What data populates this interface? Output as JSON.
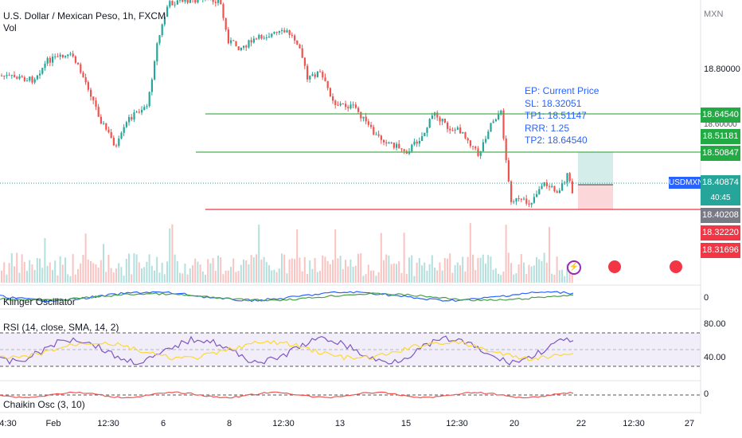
{
  "header": {
    "title": "U.S. Dollar / Mexican Peso, 1h, FXCM",
    "volume_label": "Vol"
  },
  "currency_label": "MXN",
  "panes": {
    "klinger": "Klinger Oscillator",
    "rsi": "RSI (14, close, SMA, 14, 2)",
    "chaikin": "Chaikin Osc (3, 10)"
  },
  "right_axis": {
    "main_tick": "18.80000",
    "partial_tick": "18.60000",
    "klinger_zero": "0",
    "rsi_high": "80.00",
    "rsi_low": "40.00",
    "chaikin_zero": "0"
  },
  "price_tags": [
    {
      "label": "18.64540",
      "color": "#22ab44"
    },
    {
      "label": "18.51181",
      "color": "#22ab44"
    },
    {
      "label": "18.50847",
      "color": "#22ab44"
    },
    {
      "label": "18.40874",
      "color": "#26a69a"
    },
    {
      "label": "40:45",
      "color": "#26a69a"
    },
    {
      "label": "18.40208",
      "color": "#787b86"
    },
    {
      "label": "18.32220",
      "color": "#f23645"
    },
    {
      "label": "18.31696",
      "color": "#f23645"
    }
  ],
  "symbol_badge": "USDMXN",
  "trade_note": [
    "EP: Current Price",
    "SL: 18.32051",
    "TP1: 18.51147",
    "RRR: 1.25",
    "TP2: 18.64540"
  ],
  "x_axis": [
    "4:30",
    "Feb",
    "12:30",
    "6",
    "8",
    "12:30",
    "13",
    "15",
    "12:30",
    "20",
    "22",
    "12:30",
    "27"
  ],
  "colors": {
    "up": "#26a69a",
    "down": "#ef5350",
    "green_line": "#4caf50",
    "red_line": "#f23645",
    "accent": "#2962ff"
  },
  "icons": [
    "lightning-icon",
    "us-flag-icon",
    "us-flag-icon"
  ]
}
